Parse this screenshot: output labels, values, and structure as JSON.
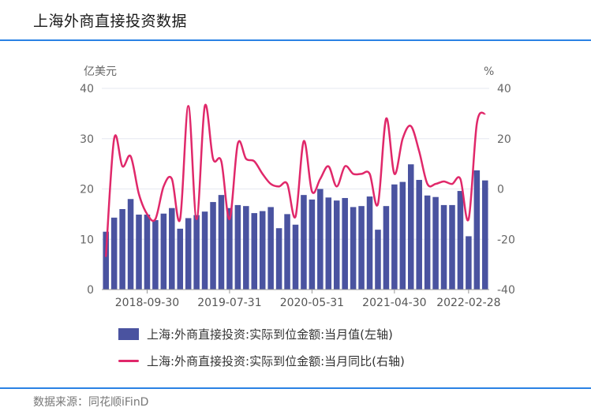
{
  "title": "上海外商直接投资数据",
  "source": "数据来源：同花顺iFinD",
  "colors": {
    "bar": "#4a53a0",
    "line": "#e0286a",
    "accent": "#2a82e4"
  },
  "chart_data": {
    "type": "bar",
    "left_unit": "亿美元",
    "right_unit": "%",
    "left_ylim": [
      0,
      40
    ],
    "right_ylim": [
      -40,
      40
    ],
    "left_ticks": [
      "0",
      "10",
      "20",
      "30",
      "40"
    ],
    "right_ticks": [
      "-40",
      "-20",
      "0",
      "20",
      "40"
    ],
    "x_tick_labels": [
      "2018-09-30",
      "2019-07-31",
      "2020-05-31",
      "2021-04-30",
      "2022-02-28"
    ],
    "x_tick_indices": [
      5,
      15,
      25,
      35,
      44
    ],
    "grid": true,
    "series": [
      {
        "name": "上海:外商直接投资:实际到位金额:当月值(左轴)",
        "type": "bar",
        "axis": "left",
        "values": [
          11.5,
          14.3,
          16.0,
          18.0,
          14.9,
          14.9,
          13.8,
          15.1,
          16.2,
          12.1,
          14.2,
          14.8,
          15.5,
          17.4,
          18.8,
          16.2,
          16.8,
          16.6,
          15.2,
          15.6,
          16.4,
          12.2,
          15.0,
          12.9,
          18.8,
          17.9,
          20.0,
          18.3,
          17.7,
          18.2,
          16.4,
          16.6,
          18.5,
          11.9,
          16.6,
          20.9,
          21.4,
          24.9,
          21.8,
          18.7,
          18.4,
          16.8,
          16.8,
          19.6,
          10.6,
          23.7,
          21.7
        ]
      },
      {
        "name": "上海:外商直接投资:实际到位金额:当月同比(右轴)",
        "type": "line",
        "axis": "right",
        "values": [
          -27,
          20,
          9,
          13,
          -2,
          -10,
          -12,
          1,
          4,
          -12,
          33,
          -12,
          33,
          12,
          11,
          -12,
          18,
          12,
          11,
          6,
          2,
          1,
          2,
          -11,
          19,
          -1,
          4,
          9,
          1,
          9,
          6,
          6,
          6,
          -6,
          28,
          6,
          20,
          25,
          15,
          2,
          2,
          3,
          2,
          4,
          -12,
          26,
          30
        ]
      }
    ]
  }
}
